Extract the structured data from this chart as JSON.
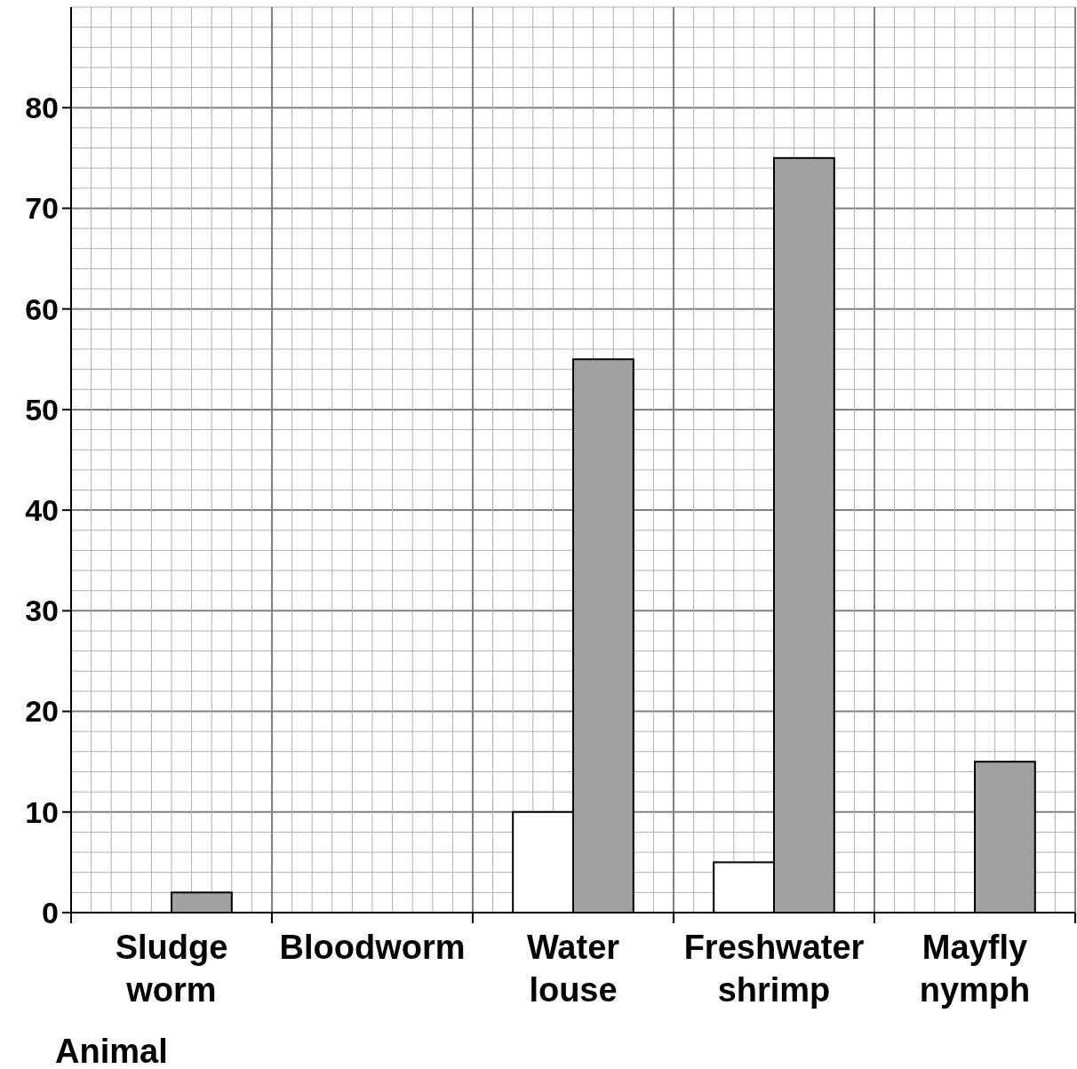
{
  "chart_data": {
    "type": "bar",
    "xlabel": "Animal",
    "categories": [
      "Sludge worm",
      "Bloodworm",
      "Water louse",
      "Freshwater shrimp",
      "Mayfly nymph"
    ],
    "series": [
      {
        "color": "#ffffff",
        "values": [
          0,
          0,
          10,
          5,
          0
        ]
      },
      {
        "color": "#a0a0a0",
        "values": [
          2,
          0,
          55,
          75,
          15
        ]
      }
    ],
    "ylim": [
      0,
      90
    ],
    "yticks": [
      0,
      10,
      20,
      30,
      40,
      50,
      60,
      70,
      80
    ],
    "grid": true
  }
}
